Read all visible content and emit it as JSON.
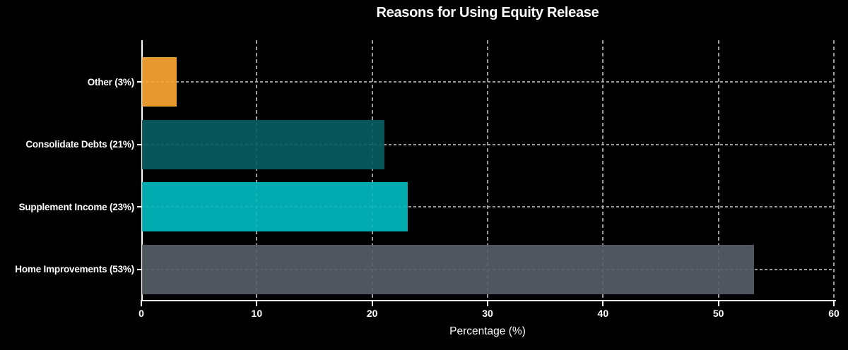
{
  "chart_data": {
    "type": "bar",
    "orientation": "horizontal",
    "title": "Reasons for Using Equity Release",
    "xlabel": "Percentage (%)",
    "categories": [
      "Other (3%)",
      "Consolidate Debts (21%)",
      "Supplement Income (23%)",
      "Home Improvements (53%)"
    ],
    "values": [
      3,
      21,
      23,
      53
    ],
    "bar_colors": [
      "#F8A632",
      "#095C62",
      "#00B8BE",
      "#575D67"
    ],
    "xlim": [
      0,
      60
    ],
    "xticks": [
      0,
      10,
      20,
      30,
      40,
      50,
      60
    ],
    "grid": true,
    "legend": "none",
    "colors": {
      "background": "#000000",
      "text": "#FFFFFF",
      "gridline": "#9B9B9B",
      "axis": "#FFFFFF"
    }
  }
}
